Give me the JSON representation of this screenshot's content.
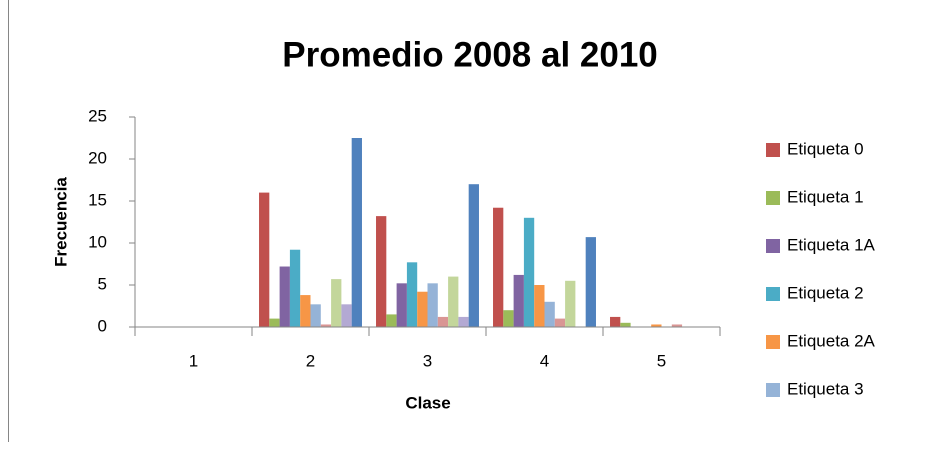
{
  "chart_data": {
    "type": "bar",
    "title": "Promedio 2008 al 2010",
    "x_label": "Clase",
    "y_label": "Frecuencia",
    "categories": [
      "1",
      "2",
      "3",
      "4",
      "5"
    ],
    "ylim": [
      0,
      25
    ],
    "yticks": [
      0,
      5,
      10,
      15,
      20,
      25
    ],
    "grid": false,
    "legend": "right",
    "series": [
      {
        "name": "Etiqueta 0",
        "color": "#c0504d",
        "values": [
          0,
          16,
          13.2,
          14.2,
          1.2
        ]
      },
      {
        "name": "Etiqueta 1",
        "color": "#9bbb59",
        "values": [
          0,
          1,
          1.5,
          2,
          0.5
        ]
      },
      {
        "name": "Etiqueta 1A",
        "color": "#8064a2",
        "values": [
          0,
          7.2,
          5.2,
          6.2,
          0
        ]
      },
      {
        "name": "Etiqueta 2",
        "color": "#4bacc6",
        "values": [
          0,
          9.2,
          7.7,
          13,
          0
        ]
      },
      {
        "name": "Etiqueta 2A",
        "color": "#f79646",
        "values": [
          0,
          3.8,
          4.2,
          5,
          0.3
        ]
      },
      {
        "name": "Etiqueta 3",
        "color": "#95b3d7",
        "values": [
          0,
          2.7,
          5.2,
          3,
          0
        ]
      },
      {
        "color": "#d99694",
        "values": [
          0,
          0.3,
          1.2,
          1,
          0.3
        ]
      },
      {
        "color": "#c3d69b",
        "values": [
          0,
          5.7,
          6,
          5.5,
          0
        ]
      },
      {
        "color": "#b3a9d3",
        "values": [
          0,
          2.7,
          1.2,
          0,
          0
        ]
      },
      {
        "color": "#4f81bd",
        "values": [
          0,
          22.5,
          17,
          10.7,
          0
        ]
      }
    ]
  }
}
